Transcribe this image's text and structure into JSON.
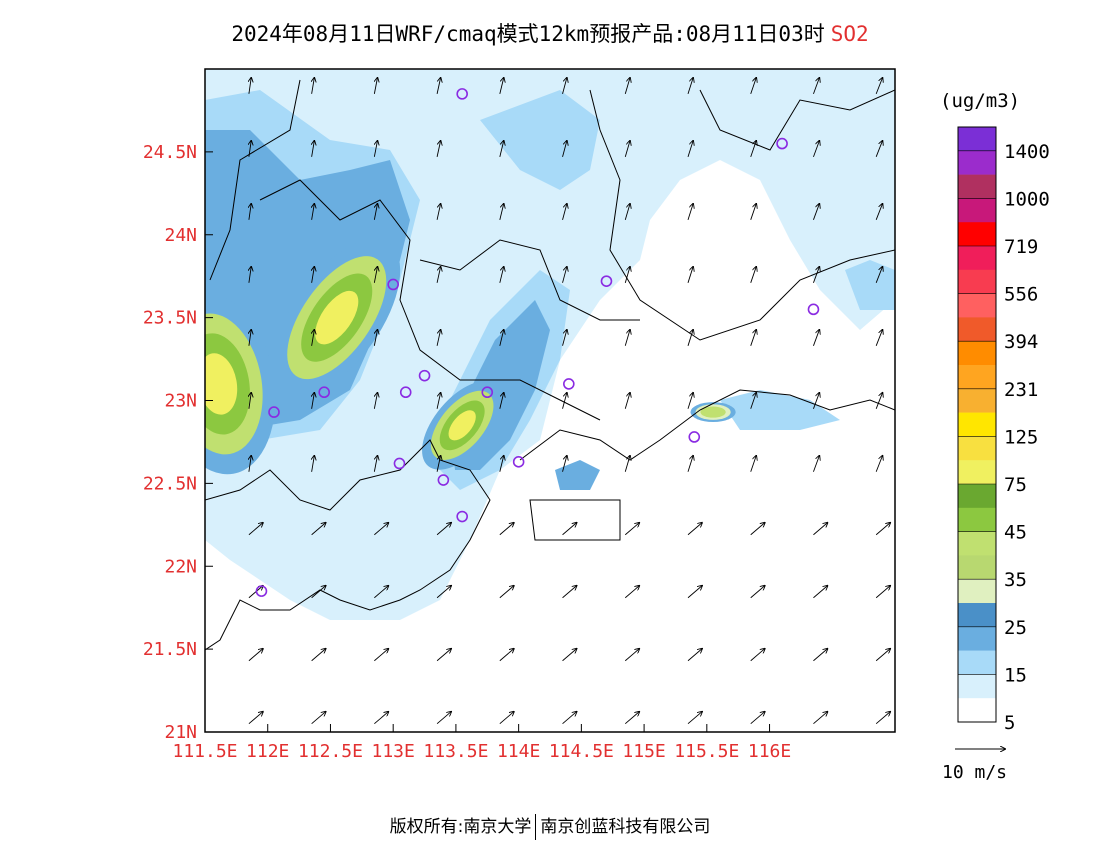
{
  "title": {
    "main": "2024年08月11日WRF/cmaq模式12km预报产品:08月11日03时",
    "species": "SO2"
  },
  "map": {
    "lon_range": [
      111.5,
      117.0
    ],
    "lat_range": [
      21.0,
      25.0
    ],
    "x_ticks": [
      {
        "lon": 111.5,
        "label": "111.5E"
      },
      {
        "lon": 112.0,
        "label": "112E"
      },
      {
        "lon": 112.5,
        "label": "112.5E"
      },
      {
        "lon": 113.0,
        "label": "113E"
      },
      {
        "lon": 113.5,
        "label": "113.5E"
      },
      {
        "lon": 114.0,
        "label": "114E"
      },
      {
        "lon": 114.5,
        "label": "114.5E"
      },
      {
        "lon": 115.0,
        "label": "115E"
      },
      {
        "lon": 115.5,
        "label": "115.5E"
      },
      {
        "lon": 116.0,
        "label": "116E"
      }
    ],
    "y_ticks": [
      {
        "lat": 24.5,
        "label": "24.5N"
      },
      {
        "lat": 24.0,
        "label": "24N"
      },
      {
        "lat": 23.5,
        "label": "23.5N"
      },
      {
        "lat": 23.0,
        "label": "23N"
      },
      {
        "lat": 22.5,
        "label": "22.5N"
      },
      {
        "lat": 22.0,
        "label": "22N"
      },
      {
        "lat": 21.5,
        "label": "21.5N"
      },
      {
        "lat": 21.0,
        "label": "21N"
      }
    ],
    "stations": [
      {
        "lon": 113.55,
        "lat": 24.85
      },
      {
        "lon": 116.1,
        "lat": 24.55
      },
      {
        "lon": 113.0,
        "lat": 23.7
      },
      {
        "lon": 114.7,
        "lat": 23.72
      },
      {
        "lon": 116.35,
        "lat": 23.55
      },
      {
        "lon": 112.45,
        "lat": 23.05
      },
      {
        "lon": 112.05,
        "lat": 22.93
      },
      {
        "lon": 113.1,
        "lat": 23.05
      },
      {
        "lon": 113.25,
        "lat": 23.15
      },
      {
        "lon": 113.75,
        "lat": 23.05
      },
      {
        "lon": 114.4,
        "lat": 23.1
      },
      {
        "lon": 113.05,
        "lat": 22.62
      },
      {
        "lon": 113.4,
        "lat": 22.52
      },
      {
        "lon": 113.55,
        "lat": 22.3
      },
      {
        "lon": 114.0,
        "lat": 22.63
      },
      {
        "lon": 115.4,
        "lat": 22.78
      },
      {
        "lon": 111.95,
        "lat": 21.85
      }
    ],
    "plumes": [
      {
        "lon": 111.6,
        "lat": 23.1,
        "rx": 0.45,
        "ry": 0.55,
        "rot": -10,
        "level": 75
      },
      {
        "lon": 112.55,
        "lat": 23.5,
        "rx": 0.35,
        "ry": 0.55,
        "rot": 35,
        "level": 75
      },
      {
        "lon": 113.55,
        "lat": 22.85,
        "rx": 0.22,
        "ry": 0.32,
        "rot": 40,
        "level": 75
      },
      {
        "lon": 115.55,
        "lat": 22.93,
        "rx": 0.18,
        "ry": 0.06,
        "rot": 0,
        "level": 35
      }
    ]
  },
  "colorbar": {
    "unit": "(ug/m3)",
    "levels": [
      "1400",
      "1000",
      "719",
      "556",
      "394",
      "231",
      "125",
      "75",
      "45",
      "35",
      "25",
      "15",
      "5"
    ],
    "colors": [
      "#7b2fd6",
      "#9b2ccc",
      "#b03060",
      "#c8187a",
      "#ff0000",
      "#f01e5a",
      "#f83c50",
      "#ff6060",
      "#f05a2a",
      "#ff8c00",
      "#ffa520",
      "#f8b030",
      "#ffe600",
      "#f8e040",
      "#f0f060",
      "#6aa830",
      "#8cc840",
      "#c0e070",
      "#b8d870",
      "#e0f0c0",
      "#4a90c8",
      "#6aaee0",
      "#a8daf8",
      "#d8f0fc",
      "#ffffff"
    ]
  },
  "wind_legend": {
    "label": "10 m/s"
  },
  "copyright": {
    "left": "版权所有:南京大学",
    "right": "南京创蓝科技有限公司"
  }
}
